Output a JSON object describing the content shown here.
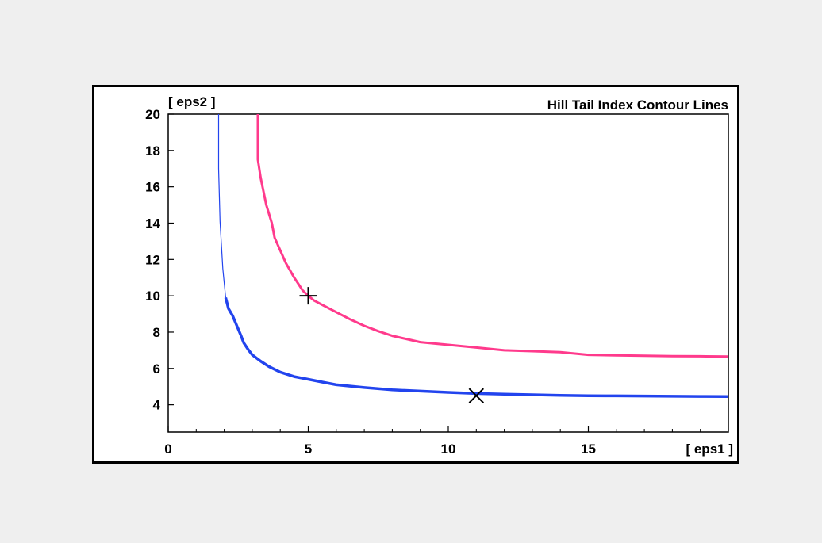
{
  "chart_data": {
    "type": "line",
    "title": "Hill Tail Index Contour Lines",
    "xlabel": "[ eps1 ]",
    "ylabel": "[ eps2 ]",
    "xlim": [
      0,
      20
    ],
    "ylim": [
      2.5,
      20
    ],
    "x_ticks": [
      0,
      5,
      10,
      15
    ],
    "y_ticks": [
      4,
      6,
      8,
      10,
      12,
      14,
      16,
      18,
      20
    ],
    "grid": false,
    "legend": "none",
    "series": [
      {
        "color": "#ff3a8c",
        "stroke": "medium",
        "x": [
          3.2,
          3.2,
          3.3,
          3.5,
          3.7,
          3.8,
          4.0,
          4.2,
          4.5,
          4.8,
          5.0,
          5.2,
          5.5,
          6.0,
          6.5,
          7.0,
          7.5,
          8.0,
          9.0,
          10.0,
          11.0,
          12.0,
          13.0,
          14.0,
          15.0,
          16.0,
          17.0,
          18.0,
          19.0,
          20.0
        ],
        "y": [
          20.0,
          17.5,
          16.5,
          15.0,
          14.0,
          13.2,
          12.5,
          11.8,
          11.0,
          10.3,
          10.0,
          9.75,
          9.5,
          9.1,
          8.7,
          8.35,
          8.05,
          7.8,
          7.45,
          7.3,
          7.15,
          7.0,
          6.95,
          6.9,
          6.75,
          6.72,
          6.7,
          6.68,
          6.67,
          6.66
        ]
      },
      {
        "color": "#2244ee",
        "stroke": "thin-to-thick",
        "x": [
          1.8,
          1.8,
          1.85,
          1.95,
          2.05,
          2.15,
          2.3,
          2.45,
          2.6,
          2.7,
          2.85,
          3.0,
          3.3,
          3.6,
          4.0,
          4.5,
          5.0,
          5.5,
          6.0,
          7.0,
          8.0,
          9.0,
          10.0,
          11.0,
          12.0,
          13.0,
          14.0,
          15.0,
          16.0,
          17.0,
          18.0,
          19.0,
          20.0
        ],
        "y": [
          20.0,
          17.0,
          14.1,
          11.5,
          9.9,
          9.3,
          8.9,
          8.35,
          7.8,
          7.4,
          7.05,
          6.75,
          6.4,
          6.1,
          5.8,
          5.55,
          5.4,
          5.25,
          5.1,
          4.95,
          4.82,
          4.75,
          4.68,
          4.62,
          4.58,
          4.55,
          4.52,
          4.5,
          4.49,
          4.48,
          4.47,
          4.46,
          4.45
        ]
      }
    ],
    "markers": [
      {
        "shape": "plus",
        "x": 5.0,
        "y": 10.0
      },
      {
        "shape": "cross",
        "x": 11.0,
        "y": 4.5
      }
    ]
  }
}
